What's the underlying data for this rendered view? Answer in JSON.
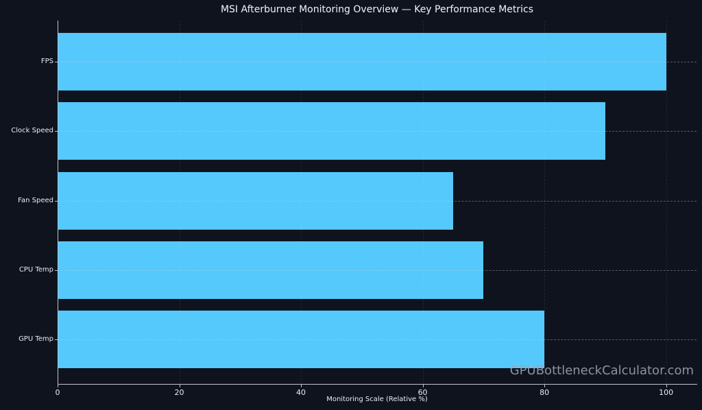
{
  "chart_data": {
    "type": "bar",
    "orientation": "horizontal",
    "title": "MSI Afterburner Monitoring Overview — Key Performance Metrics",
    "categories": [
      "FPS",
      "Clock Speed",
      "Fan Speed",
      "CPU Temp",
      "GPU Temp"
    ],
    "values": [
      100,
      90,
      65,
      70,
      80
    ],
    "xlabel": "Monitoring Scale (Relative %)",
    "ylabel": "",
    "xlim": [
      0,
      105
    ],
    "xticks": [
      0,
      20,
      40,
      60,
      80,
      100
    ],
    "grid": true,
    "legend": "none",
    "bar_color": "#55c9fc",
    "background_color": "#0f131e",
    "text_color": "#e9ecf1",
    "watermark": "GPUBottleneckCalculator.com"
  }
}
